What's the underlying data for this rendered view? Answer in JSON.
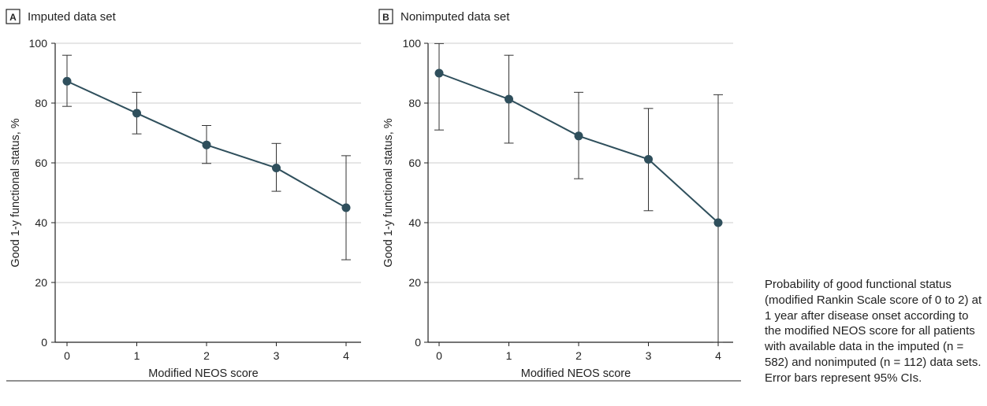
{
  "caption": "Probability of good functional status (modified Rankin Scale score of 0 to 2) at 1 year after disease onset according to the modified NEOS score for all patients with available data in the imputed (n = 582) and nonimputed (n = 112) data sets. Error bars represent 95% CIs.",
  "colors": {
    "line": "#2f4f5c",
    "marker": "#2f4f5c",
    "errorbar": "#333333",
    "grid": "#cccccc",
    "axis": "#222222"
  },
  "chart_data": [
    {
      "type": "line",
      "panel_letter": "A",
      "title": "Imputed data set",
      "xlabel": "Modified NEOS score",
      "ylabel": "Good 1-y functional status, %",
      "x": [
        0,
        1,
        2,
        3,
        4
      ],
      "xticks": [
        "0",
        "1",
        "2",
        "3",
        "4"
      ],
      "yticks": [
        "0",
        "20",
        "40",
        "60",
        "80",
        "100"
      ],
      "ylim": [
        0,
        100
      ],
      "grid": "horizontal",
      "series": [
        {
          "values": [
            87.3,
            76.6,
            66.0,
            58.3,
            45.0
          ],
          "ci_lower": [
            78.9,
            69.7,
            59.8,
            50.5,
            27.6
          ],
          "ci_upper": [
            96.0,
            83.6,
            72.5,
            66.5,
            62.4
          ]
        }
      ]
    },
    {
      "type": "line",
      "panel_letter": "B",
      "title": "Nonimputed data set",
      "xlabel": "Modified NEOS score",
      "ylabel": "Good 1-y functional status, %",
      "x": [
        0,
        1,
        2,
        3,
        4
      ],
      "xticks": [
        "0",
        "1",
        "2",
        "3",
        "4"
      ],
      "yticks": [
        "0",
        "20",
        "40",
        "60",
        "80",
        "100"
      ],
      "ylim": [
        0,
        100
      ],
      "grid": "horizontal",
      "series": [
        {
          "values": [
            90.0,
            81.3,
            69.0,
            61.2,
            40.0
          ],
          "ci_lower": [
            71.0,
            66.6,
            54.7,
            44.0,
            0.0
          ],
          "ci_upper": [
            99.9,
            96.0,
            83.6,
            78.2,
            82.8
          ]
        }
      ]
    }
  ]
}
